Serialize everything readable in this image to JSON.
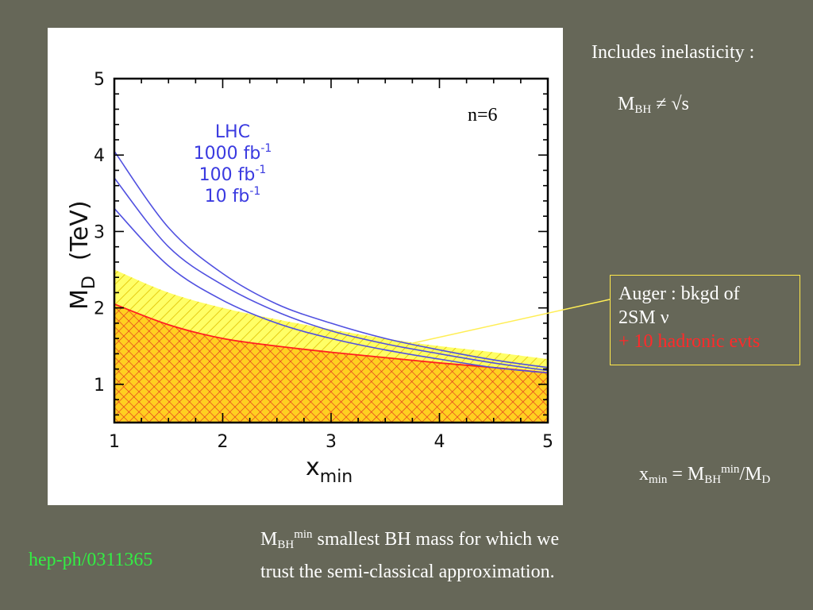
{
  "header": {
    "inelasticity": "Includes inelasticity :",
    "mbh_neq": {
      "main": "M",
      "sub": "BH",
      "rest": " ≠ √s"
    }
  },
  "auger_box": {
    "line1": "Auger : bkgd of",
    "line2": "2SM ν",
    "line3": "+ 10 hadronic evts",
    "red_color": "#ff2a2a",
    "border_color": "#ffe94a"
  },
  "xmin_def": {
    "x": "x",
    "x_sub": "min",
    "eq": " = M",
    "bh_sub": "BH",
    "min_sup": "min",
    "tail": "/M",
    "d_sub": "D"
  },
  "footer": {
    "reference": "hep-ph/0311365",
    "mbh_def_main": "M",
    "mbh_def_sub": "BH",
    "mbh_def_sup": "min",
    "mbh_def_line1": " smallest BH mass for which we",
    "mbh_def_line2": "trust the semi-classical approximation."
  },
  "chart_data": {
    "type": "line",
    "xlim": [
      1,
      5
    ],
    "ylim": [
      0.5,
      5
    ],
    "xticks": [
      "1",
      "2",
      "3",
      "4",
      "5"
    ],
    "yticks": [
      "1",
      "2",
      "3",
      "4",
      "5"
    ],
    "xlabel": {
      "main": "x",
      "sub": "min"
    },
    "ylabel": {
      "main": "M",
      "sub": "D",
      "rest": "  (TeV)"
    },
    "annotation": "n=6",
    "legend": {
      "title": "LHC",
      "entries": [
        {
          "num": "1000 fb",
          "sup": "-1"
        },
        {
          "num": "100 fb",
          "sup": "-1"
        },
        {
          "num": "10 fb",
          "sup": "-1"
        }
      ],
      "color": "#3a3ae0"
    },
    "series": [
      {
        "name": "1000 fb-1",
        "color": "#5050e0",
        "x": [
          1,
          1.5,
          2,
          2.5,
          3,
          3.5,
          4,
          4.5,
          5
        ],
        "y": [
          4.05,
          3.05,
          2.45,
          2.05,
          1.8,
          1.6,
          1.45,
          1.32,
          1.22
        ]
      },
      {
        "name": "100 fb-1",
        "color": "#5050e0",
        "x": [
          1,
          1.5,
          2,
          2.5,
          3,
          3.5,
          4,
          4.5,
          5
        ],
        "y": [
          3.7,
          2.8,
          2.3,
          1.95,
          1.7,
          1.53,
          1.4,
          1.28,
          1.18
        ]
      },
      {
        "name": "10 fb-1",
        "color": "#5050e0",
        "x": [
          1,
          1.5,
          2,
          2.5,
          3,
          3.5,
          4,
          4.5,
          5
        ],
        "y": [
          3.3,
          2.55,
          2.1,
          1.8,
          1.6,
          1.45,
          1.33,
          1.22,
          1.15
        ]
      }
    ],
    "bands": [
      {
        "name": "Auger",
        "fill": "#ffff66",
        "hatch": "#e0c000",
        "x": [
          1,
          1.5,
          2,
          2.5,
          3,
          3.5,
          4,
          4.5,
          5
        ],
        "y": [
          2.5,
          2.2,
          2.0,
          1.85,
          1.72,
          1.6,
          1.5,
          1.42,
          1.33
        ]
      },
      {
        "name": "Auger + 10 hadronic evts",
        "fill": "#ffd020",
        "hatch": "#e03020",
        "x": [
          1,
          1.5,
          2,
          2.5,
          3,
          3.5,
          4,
          4.5,
          5
        ],
        "y": [
          2.05,
          1.78,
          1.6,
          1.5,
          1.42,
          1.35,
          1.28,
          1.22,
          1.15
        ]
      }
    ]
  }
}
